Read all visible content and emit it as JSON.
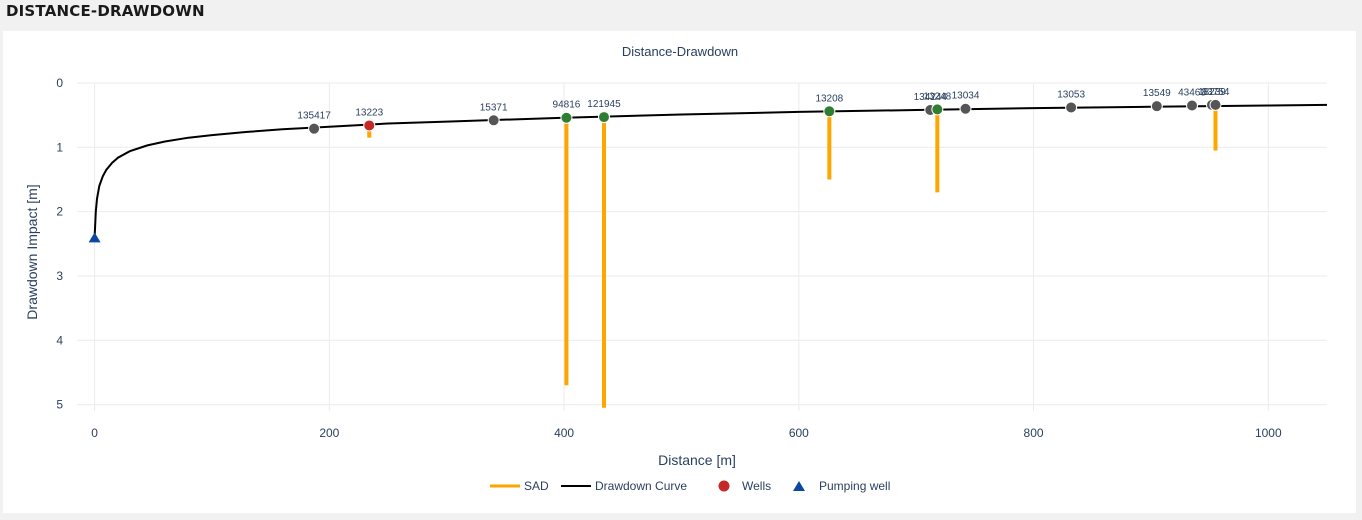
{
  "section_title": "DISTANCE-DRAWDOWN",
  "chart_data": {
    "type": "scatter",
    "title": "Distance-Drawdown",
    "xlabel": "Distance [m]",
    "ylabel": "Drawdown Impact [m]",
    "xlim": [
      -15,
      1050
    ],
    "ylim": [
      5.1,
      0
    ],
    "y_reversed": true,
    "x_ticks": [
      0,
      200,
      400,
      600,
      800,
      1000
    ],
    "y_ticks": [
      0,
      1,
      2,
      3,
      4,
      5
    ],
    "grid": true,
    "legend_position": "bottom-center",
    "legend": [
      "SAD",
      "Drawdown Curve",
      "Wells",
      "Pumping well"
    ],
    "colors": {
      "sad": "#ffa500",
      "curve": "#000000",
      "well_grey": "#555555",
      "well_green": "#2e7d32",
      "well_red": "#c62828",
      "pumping": "#0d47a1"
    },
    "pumping_well": {
      "x": 0,
      "y": 2.4
    },
    "curve": {
      "x": [
        0,
        1,
        2,
        4,
        7,
        10,
        15,
        20,
        30,
        45,
        60,
        80,
        100,
        130,
        160,
        200,
        250,
        300,
        400,
        500,
        600,
        700,
        800,
        900,
        1000,
        1050
      ],
      "y": [
        2.4,
        2.0,
        1.8,
        1.6,
        1.45,
        1.35,
        1.24,
        1.16,
        1.06,
        0.97,
        0.91,
        0.85,
        0.81,
        0.76,
        0.72,
        0.68,
        0.63,
        0.6,
        0.54,
        0.49,
        0.45,
        0.42,
        0.39,
        0.37,
        0.35,
        0.34
      ]
    },
    "wells": [
      {
        "label": "135417",
        "x": 187,
        "y": 0.71,
        "status": "grey"
      },
      {
        "label": "13223",
        "x": 234,
        "y": 0.66,
        "status": "red",
        "sad": 0.85
      },
      {
        "label": "15371",
        "x": 340,
        "y": 0.58,
        "status": "grey"
      },
      {
        "label": "94816",
        "x": 402,
        "y": 0.54,
        "status": "green",
        "sad": 4.7
      },
      {
        "label": "121945",
        "x": 434,
        "y": 0.53,
        "status": "green",
        "sad": 5.05
      },
      {
        "label": "13208",
        "x": 626,
        "y": 0.44,
        "status": "green",
        "sad": 1.5
      },
      {
        "label": "134244",
        "x": 712,
        "y": 0.42,
        "status": "grey"
      },
      {
        "label": "13248",
        "x": 718,
        "y": 0.41,
        "status": "green",
        "sad": 1.7
      },
      {
        "label": "13034",
        "x": 742,
        "y": 0.4,
        "status": "grey"
      },
      {
        "label": "13053",
        "x": 832,
        "y": 0.38,
        "status": "grey"
      },
      {
        "label": "13549",
        "x": 905,
        "y": 0.36,
        "status": "grey"
      },
      {
        "label": "43463",
        "x": 935,
        "y": 0.35,
        "status": "grey"
      },
      {
        "label": "13239",
        "x": 952,
        "y": 0.34,
        "status": "grey"
      },
      {
        "label": "83754",
        "x": 955,
        "y": 0.34,
        "status": "grey",
        "sad": 1.05
      }
    ]
  }
}
